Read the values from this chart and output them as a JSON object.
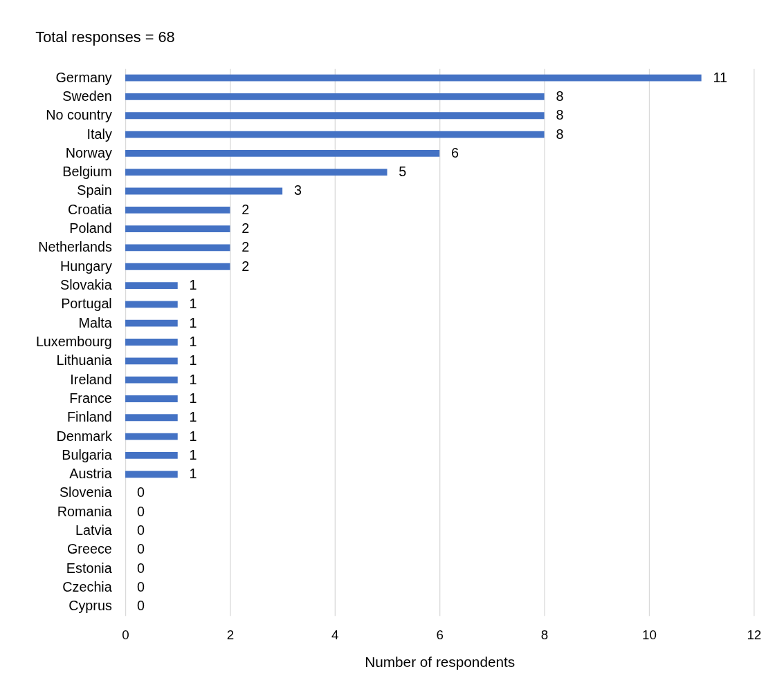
{
  "chart_data": {
    "type": "bar",
    "orientation": "horizontal",
    "title": "Total responses = 68",
    "xlabel": "Number of respondents",
    "categories": [
      "Germany",
      "Sweden",
      "No country",
      "Italy",
      "Norway",
      "Belgium",
      "Spain",
      "Croatia",
      "Poland",
      "Netherlands",
      "Hungary",
      "Slovakia",
      "Portugal",
      "Malta",
      "Luxembourg",
      "Lithuania",
      "Ireland",
      "France",
      "Finland",
      "Denmark",
      "Bulgaria",
      "Austria",
      "Slovenia",
      "Romania",
      "Latvia",
      "Greece",
      "Estonia",
      "Czechia",
      "Cyprus"
    ],
    "values": [
      11,
      8,
      8,
      8,
      6,
      5,
      3,
      2,
      2,
      2,
      2,
      1,
      1,
      1,
      1,
      1,
      1,
      1,
      1,
      1,
      1,
      1,
      0,
      0,
      0,
      0,
      0,
      0,
      0
    ],
    "color": "#4472c4",
    "xlim": [
      0,
      12
    ],
    "xticks": [
      0,
      2,
      4,
      6,
      8,
      10,
      12
    ],
    "grid": "x",
    "data_labels": true
  }
}
